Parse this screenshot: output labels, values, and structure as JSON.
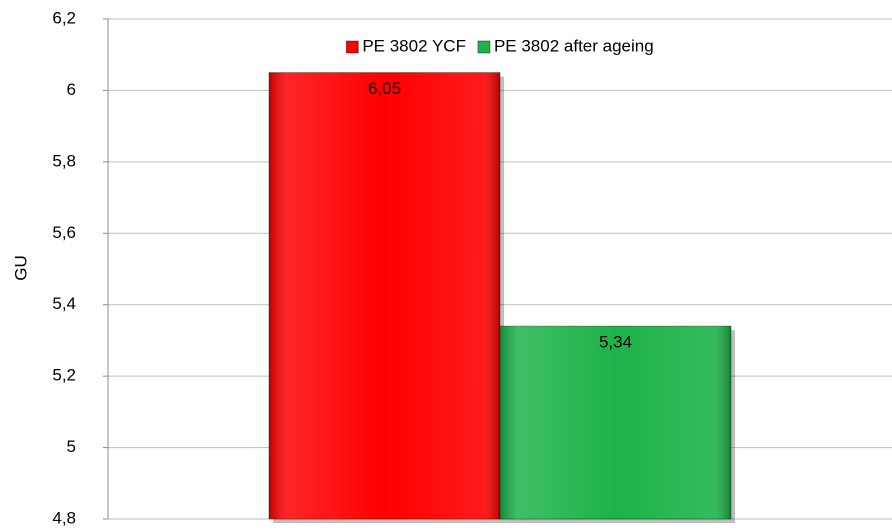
{
  "chart_data": {
    "type": "bar",
    "y_label": "GU",
    "categories": [
      null
    ],
    "series": [
      {
        "name": "PE 3802 YCF",
        "color": "#ff0000",
        "values": [
          6.05
        ],
        "value_labels": [
          "6,05"
        ]
      },
      {
        "name": "PE 3802 after ageing",
        "color": "#1db34a",
        "values": [
          5.34
        ],
        "value_labels": [
          "5,34"
        ]
      }
    ],
    "ylim": [
      4.8,
      6.2
    ],
    "yticks": [
      {
        "value": 4.8,
        "label": "4,8"
      },
      {
        "value": 5,
        "label": "5"
      },
      {
        "value": 5.2,
        "label": "5,2"
      },
      {
        "value": 5.4,
        "label": "5,4"
      },
      {
        "value": 5.6,
        "label": "5,6"
      },
      {
        "value": 5.8,
        "label": "5,8"
      },
      {
        "value": 6,
        "label": "6"
      },
      {
        "value": 6.2,
        "label": "6,2"
      }
    ],
    "grid": true,
    "legend": "top"
  }
}
